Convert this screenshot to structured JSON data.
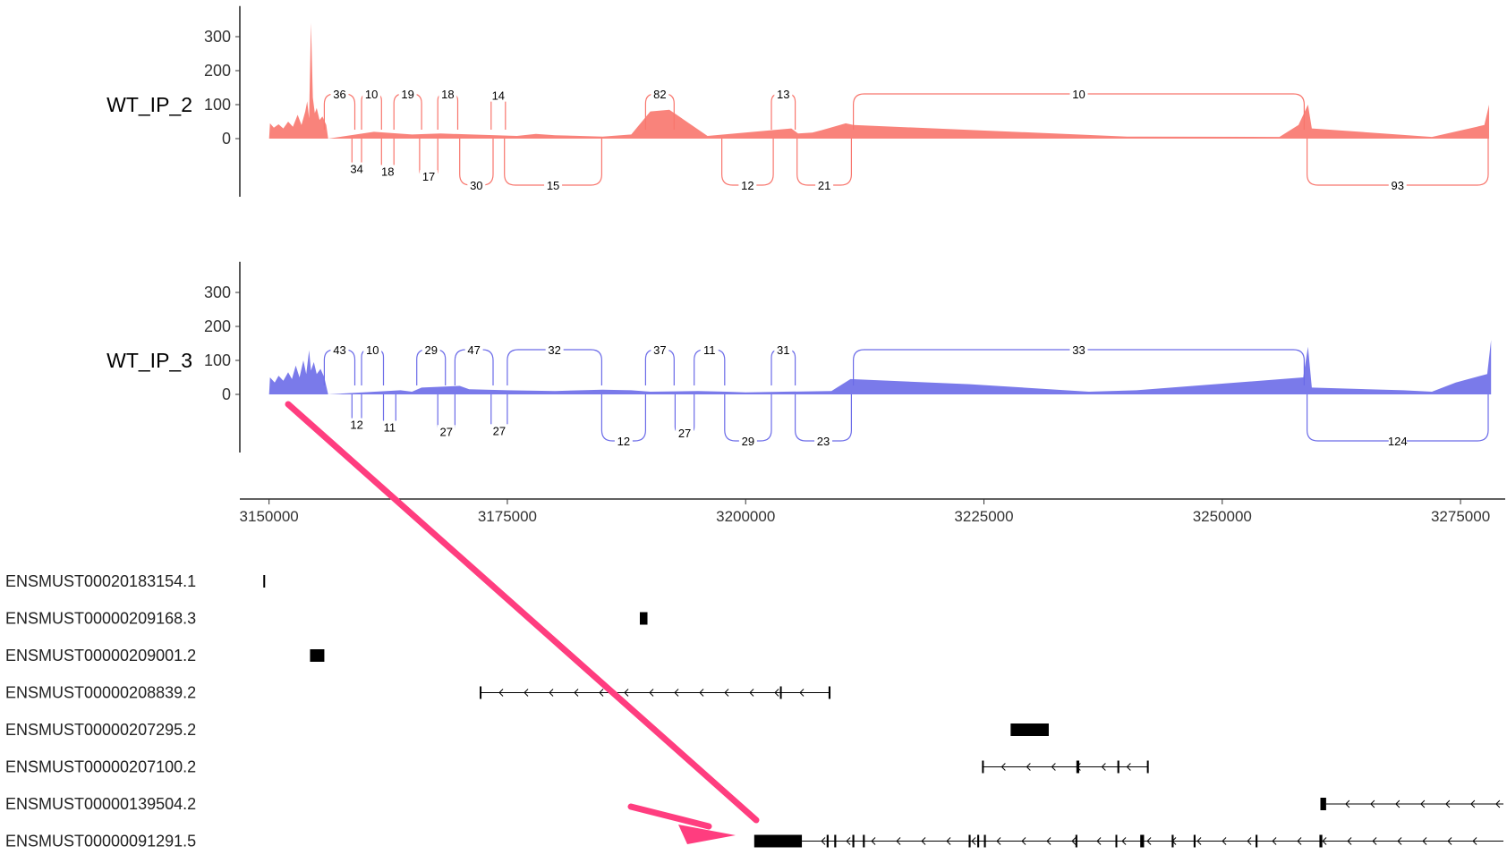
{
  "colors": {
    "sample_1": "#F8766D",
    "sample_2": "#6B6BE8",
    "annotation": "#FF3D7F",
    "gene": "#000000"
  },
  "chart_data": {
    "type": "sashimi",
    "xlim": [
      3149000,
      3279500
    ],
    "x_ticks": [
      3150000,
      3175000,
      3200000,
      3225000,
      3250000,
      3275000
    ],
    "y_ticks": [
      0,
      100,
      200,
      300
    ],
    "ylim": [
      -170,
      390
    ],
    "panels": [
      {
        "name": "WT_IP_2",
        "color": "#F8766D",
        "coverage": [
          [
            3150000,
            0
          ],
          [
            3150100,
            45
          ],
          [
            3150500,
            32
          ],
          [
            3151000,
            42
          ],
          [
            3151500,
            30
          ],
          [
            3152000,
            50
          ],
          [
            3152500,
            35
          ],
          [
            3153000,
            70
          ],
          [
            3153400,
            40
          ],
          [
            3153800,
            80
          ],
          [
            3154000,
            110
          ],
          [
            3154200,
            60
          ],
          [
            3154400,
            340
          ],
          [
            3154600,
            120
          ],
          [
            3154800,
            75
          ],
          [
            3155000,
            90
          ],
          [
            3155300,
            55
          ],
          [
            3155600,
            65
          ],
          [
            3156000,
            40
          ],
          [
            3156200,
            0
          ],
          [
            3161000,
            20
          ],
          [
            3165000,
            12
          ],
          [
            3168000,
            15
          ],
          [
            3176000,
            8
          ],
          [
            3178000,
            14
          ],
          [
            3180000,
            10
          ],
          [
            3185000,
            6
          ],
          [
            3188000,
            12
          ],
          [
            3190000,
            80
          ],
          [
            3192000,
            85
          ],
          [
            3196000,
            8
          ],
          [
            3204800,
            30
          ],
          [
            3205500,
            15
          ],
          [
            3207000,
            18
          ],
          [
            3208000,
            25
          ],
          [
            3210500,
            45
          ],
          [
            3211300,
            40
          ],
          [
            3240000,
            6
          ],
          [
            3256000,
            5
          ],
          [
            3258000,
            40
          ],
          [
            3259000,
            100
          ],
          [
            3259400,
            30
          ],
          [
            3272000,
            5
          ],
          [
            3277500,
            40
          ],
          [
            3278000,
            100
          ]
        ],
        "junctions": [
          {
            "start": 3155800,
            "end": 3159000,
            "count": 36,
            "side": "above"
          },
          {
            "start": 3158700,
            "end": 3159700,
            "count": 34,
            "side": "below"
          },
          {
            "start": 3159700,
            "end": 3161800,
            "count": 10,
            "side": "above"
          },
          {
            "start": 3161800,
            "end": 3163100,
            "count": 18,
            "side": "below"
          },
          {
            "start": 3163100,
            "end": 3166000,
            "count": 19,
            "side": "above"
          },
          {
            "start": 3165800,
            "end": 3167700,
            "count": 17,
            "side": "below"
          },
          {
            "start": 3167700,
            "end": 3169800,
            "count": 18,
            "side": "above"
          },
          {
            "start": 3170000,
            "end": 3173500,
            "count": 30,
            "side": "below"
          },
          {
            "start": 3173300,
            "end": 3174800,
            "count": 14,
            "side": "above"
          },
          {
            "start": 3174700,
            "end": 3184900,
            "count": 15,
            "side": "below"
          },
          {
            "start": 3189500,
            "end": 3192500,
            "count": 82,
            "side": "above"
          },
          {
            "start": 3197500,
            "end": 3202900,
            "count": 12,
            "side": "below"
          },
          {
            "start": 3202700,
            "end": 3205200,
            "count": 13,
            "side": "above"
          },
          {
            "start": 3205400,
            "end": 3211100,
            "count": 21,
            "side": "below"
          },
          {
            "start": 3211300,
            "end": 3258600,
            "count": 10,
            "side": "above"
          },
          {
            "start": 3258900,
            "end": 3277900,
            "count": 93,
            "side": "below"
          }
        ]
      },
      {
        "name": "WT_IP_3",
        "color": "#6B6BE8",
        "coverage": [
          [
            3150000,
            0
          ],
          [
            3150100,
            50
          ],
          [
            3150600,
            35
          ],
          [
            3151000,
            55
          ],
          [
            3151500,
            40
          ],
          [
            3152000,
            65
          ],
          [
            3152400,
            45
          ],
          [
            3152800,
            85
          ],
          [
            3153200,
            50
          ],
          [
            3153600,
            100
          ],
          [
            3153900,
            60
          ],
          [
            3154200,
            130
          ],
          [
            3154400,
            70
          ],
          [
            3154700,
            95
          ],
          [
            3155000,
            60
          ],
          [
            3155400,
            75
          ],
          [
            3155800,
            50
          ],
          [
            3156200,
            0
          ],
          [
            3163800,
            12
          ],
          [
            3165000,
            8
          ],
          [
            3166000,
            20
          ],
          [
            3170000,
            25
          ],
          [
            3171000,
            15
          ],
          [
            3175000,
            12
          ],
          [
            3180000,
            10
          ],
          [
            3185000,
            14
          ],
          [
            3188000,
            12
          ],
          [
            3190000,
            8
          ],
          [
            3195000,
            10
          ],
          [
            3198000,
            8
          ],
          [
            3200000,
            6
          ],
          [
            3209000,
            10
          ],
          [
            3211000,
            45
          ],
          [
            3223500,
            30
          ],
          [
            3236000,
            8
          ],
          [
            3241000,
            12
          ],
          [
            3258500,
            50
          ],
          [
            3259000,
            140
          ],
          [
            3259400,
            20
          ],
          [
            3269000,
            12
          ],
          [
            3272000,
            8
          ],
          [
            3274500,
            35
          ],
          [
            3277800,
            60
          ],
          [
            3278200,
            160
          ]
        ],
        "junctions": [
          {
            "start": 3155800,
            "end": 3159000,
            "count": 43,
            "side": "above"
          },
          {
            "start": 3158700,
            "end": 3159700,
            "count": 12,
            "side": "below"
          },
          {
            "start": 3159700,
            "end": 3162000,
            "count": 10,
            "side": "above"
          },
          {
            "start": 3162000,
            "end": 3163300,
            "count": 11,
            "side": "below"
          },
          {
            "start": 3165500,
            "end": 3168500,
            "count": 29,
            "side": "above"
          },
          {
            "start": 3167700,
            "end": 3169500,
            "count": 27,
            "side": "below"
          },
          {
            "start": 3169500,
            "end": 3173500,
            "count": 47,
            "side": "above"
          },
          {
            "start": 3173300,
            "end": 3175000,
            "count": 27,
            "side": "below"
          },
          {
            "start": 3175000,
            "end": 3184900,
            "count": 32,
            "side": "above"
          },
          {
            "start": 3184900,
            "end": 3189500,
            "count": 12,
            "side": "below"
          },
          {
            "start": 3189500,
            "end": 3192500,
            "count": 37,
            "side": "above"
          },
          {
            "start": 3192600,
            "end": 3194600,
            "count": 27,
            "side": "below"
          },
          {
            "start": 3194600,
            "end": 3197800,
            "count": 11,
            "side": "above"
          },
          {
            "start": 3197800,
            "end": 3202700,
            "count": 29,
            "side": "below"
          },
          {
            "start": 3202700,
            "end": 3205200,
            "count": 31,
            "side": "above"
          },
          {
            "start": 3205200,
            "end": 3211100,
            "count": 23,
            "side": "below"
          },
          {
            "start": 3211300,
            "end": 3258600,
            "count": 33,
            "side": "above"
          },
          {
            "start": 3258900,
            "end": 3277900,
            "count": 124,
            "side": "below"
          }
        ]
      }
    ],
    "transcripts": [
      {
        "name": "ENSMUST00020183154.1",
        "exons": [
          [
            3149400,
            3149500
          ]
        ],
        "introns": []
      },
      {
        "name": "ENSMUST00000209168.3",
        "exons": [
          [
            3188900,
            3189700
          ]
        ],
        "introns": []
      },
      {
        "name": "ENSMUST00000209001.2",
        "exons": [
          [
            3154300,
            3155800
          ]
        ],
        "introns": []
      },
      {
        "name": "ENSMUST00000208839.2",
        "exons": [
          [
            3172100,
            3172150
          ],
          [
            3203600,
            3203700
          ],
          [
            3208700,
            3208900
          ]
        ],
        "introns": [
          [
            3172100,
            3208900
          ]
        ]
      },
      {
        "name": "ENSMUST00000207295.2",
        "exons": [
          [
            3227800,
            3231800
          ]
        ],
        "introns": []
      },
      {
        "name": "ENSMUST00000207100.2",
        "exons": [
          [
            3224800,
            3224900
          ],
          [
            3234700,
            3235000
          ],
          [
            3239000,
            3239200
          ],
          [
            3242100,
            3242200
          ]
        ],
        "introns": [
          [
            3224800,
            3242200
          ]
        ]
      },
      {
        "name": "ENSMUST00000139504.2",
        "exons": [
          [
            3260300,
            3260900
          ]
        ],
        "introns": [
          [
            3260900,
            3279800
          ]
        ]
      },
      {
        "name": "ENSMUST00000091291.5",
        "exons": [
          [
            3200900,
            3205900
          ],
          [
            3208500,
            3208700
          ],
          [
            3209300,
            3209500
          ],
          [
            3211200,
            3211400
          ],
          [
            3212300,
            3212500
          ],
          [
            3223400,
            3223600
          ],
          [
            3224300,
            3224500
          ],
          [
            3225000,
            3225200
          ],
          [
            3234600,
            3234800
          ],
          [
            3238800,
            3238900
          ],
          [
            3241400,
            3241800
          ],
          [
            3244700,
            3244900
          ],
          [
            3247000,
            3247200
          ],
          [
            3253500,
            3253700
          ],
          [
            3260200,
            3260500
          ]
        ],
        "introns": [
          [
            3205900,
            3279800
          ]
        ]
      }
    ],
    "annotation_arrows": [
      {
        "from": [
          3153800,
          "coverage_WT_IP_3"
        ],
        "to": [
          3202800,
          "ENSMUST00000091291.5"
        ]
      }
    ]
  }
}
